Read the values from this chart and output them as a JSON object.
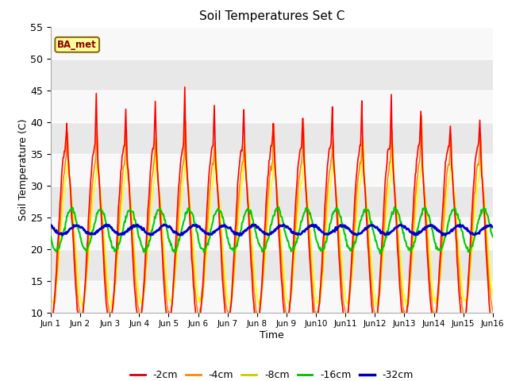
{
  "title": "Soil Temperatures Set C",
  "xlabel": "Time",
  "ylabel": "Soil Temperature (C)",
  "ylim": [
    10,
    55
  ],
  "yticks": [
    10,
    15,
    20,
    25,
    30,
    35,
    40,
    45,
    50,
    55
  ],
  "label_annotation": "BA_met",
  "n_days": 15,
  "points_per_day": 48,
  "fig_bg": "#ffffff",
  "plot_bg": "#f0f0f0",
  "band_light": "#f8f8f8",
  "band_dark": "#e8e8e8",
  "grid_color": "#ffffff",
  "colors_plot": [
    "#ffff00",
    "#ff8800",
    "#ff0000",
    "#00cc00",
    "#0000cc"
  ],
  "colors_legend": [
    "#dd0000",
    "#ff8800",
    "#cccc00",
    "#00bb00",
    "#0000bb"
  ],
  "series_labels": [
    "-2cm",
    "-4cm",
    "-8cm",
    "-16cm",
    "-32cm"
  ],
  "linewidths": [
    1.2,
    1.2,
    1.2,
    1.5,
    2.0
  ]
}
